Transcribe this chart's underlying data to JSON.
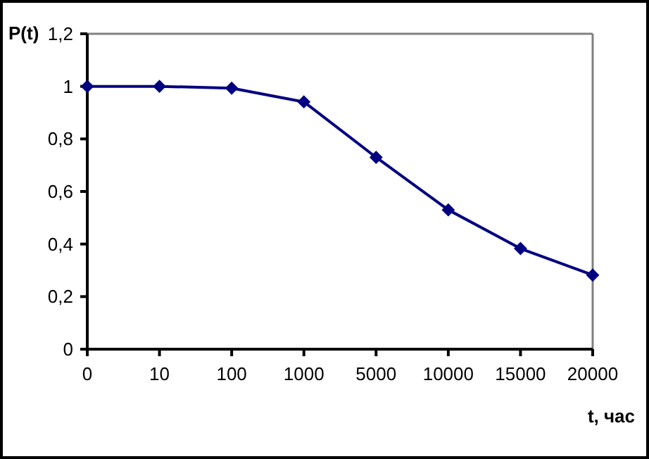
{
  "chart_data": {
    "type": "line",
    "ylabel": "P(t)",
    "xlabel": "t, час",
    "categories": [
      "0",
      "10",
      "100",
      "1000",
      "5000",
      "10000",
      "15000",
      "20000"
    ],
    "series": [
      {
        "color": "#000080",
        "values": [
          1,
          1,
          0.993,
          0.941,
          0.73,
          0.53,
          0.383,
          0.282
        ]
      }
    ],
    "ylim": [
      0,
      1.2
    ],
    "yticks": [
      0,
      {
        "value": 0.2,
        "label": "0,2"
      },
      {
        "value": 0.4,
        "label": "0,4"
      },
      {
        "value": 0.6,
        "label": "0,6"
      },
      {
        "value": 0.8,
        "label": "0,8"
      },
      1,
      {
        "value": 1.2,
        "label": "1,2"
      }
    ],
    "marker": "diamond",
    "line_style": "solid",
    "grid": false
  }
}
